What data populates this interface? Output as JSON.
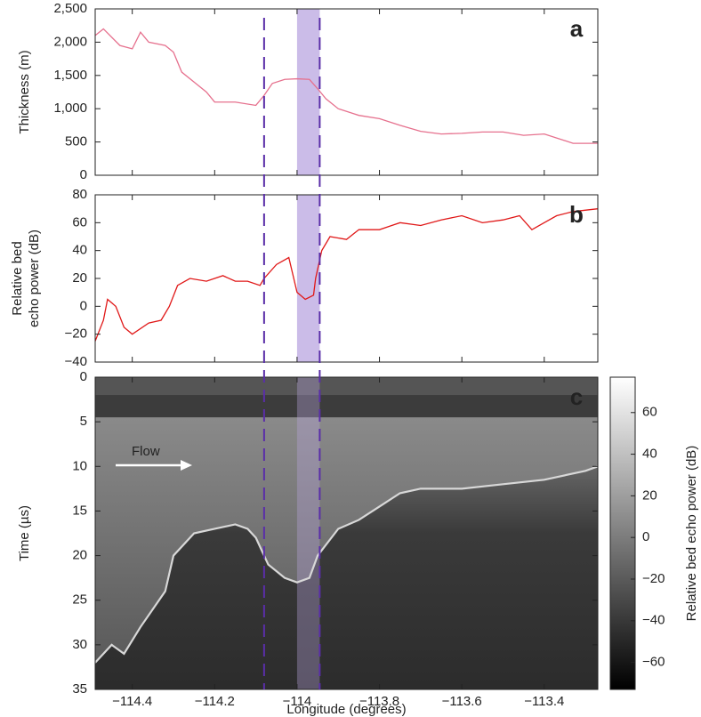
{
  "chart_data": [
    {
      "type": "line",
      "panel_label": "a",
      "y_label": "Thickness (m)",
      "x": [
        -114.49,
        -114.47,
        -114.43,
        -114.4,
        -114.38,
        -114.36,
        -114.32,
        -114.3,
        -114.28,
        -114.25,
        -114.22,
        -114.2,
        -114.15,
        -114.1,
        -114.08,
        -114.06,
        -114.03,
        -114.0,
        -113.97,
        -113.95,
        -113.93,
        -113.9,
        -113.85,
        -113.8,
        -113.75,
        -113.7,
        -113.65,
        -113.6,
        -113.55,
        -113.5,
        -113.45,
        -113.4,
        -113.37,
        -113.33,
        -113.27
      ],
      "series": [
        {
          "color": "#e6718e",
          "values": [
            2100,
            2200,
            1950,
            1900,
            2150,
            2000,
            1950,
            1850,
            1550,
            1400,
            1250,
            1100,
            1100,
            1050,
            1200,
            1380,
            1440,
            1450,
            1440,
            1300,
            1150,
            1000,
            900,
            850,
            750,
            660,
            620,
            630,
            650,
            650,
            600,
            620,
            560,
            480,
            480
          ]
        }
      ],
      "xlim": [
        -114.49,
        -113.27
      ],
      "xticks": [
        -114.4,
        -114.2,
        -114.0,
        -113.8,
        -113.6,
        -113.4
      ],
      "ylim": [
        0,
        2500
      ],
      "yticks": [
        0,
        500,
        {
          "value": 1000,
          "label": "1,000"
        },
        {
          "value": 1500,
          "label": "1,500"
        },
        {
          "value": 2000,
          "label": "2,000"
        },
        {
          "value": 2500,
          "label": "2,500"
        }
      ]
    },
    {
      "type": "line",
      "panel_label": "b",
      "y_label": [
        "Relative bed",
        "echo power (dB)"
      ],
      "x": [
        -114.49,
        -114.47,
        -114.46,
        -114.44,
        -114.42,
        -114.4,
        -114.36,
        -114.33,
        -114.31,
        -114.29,
        -114.26,
        -114.22,
        -114.18,
        -114.15,
        -114.12,
        -114.09,
        -114.08,
        -114.05,
        -114.02,
        -114.0,
        -113.98,
        -113.96,
        -113.955,
        -113.94,
        -113.92,
        -113.88,
        -113.85,
        -113.8,
        -113.75,
        -113.7,
        -113.65,
        -113.6,
        -113.55,
        -113.5,
        -113.46,
        -113.43,
        -113.4,
        -113.37,
        -113.33,
        -113.27
      ],
      "series": [
        {
          "color": "#e01818",
          "values": [
            -25,
            -10,
            5,
            0,
            -15,
            -20,
            -12,
            -10,
            0,
            15,
            20,
            18,
            22,
            18,
            18,
            15,
            20,
            30,
            35,
            10,
            5,
            8,
            20,
            40,
            50,
            48,
            55,
            55,
            60,
            58,
            62,
            65,
            60,
            62,
            65,
            55,
            60,
            65,
            68,
            70
          ]
        }
      ],
      "xlim": [
        -114.49,
        -113.27
      ],
      "xticks": [
        -114.4,
        -114.2,
        -114.0,
        -113.8,
        -113.6,
        -113.4
      ],
      "ylim": [
        -40,
        80
      ],
      "yticks": [
        {
          "value": -40,
          "label": "−40"
        },
        {
          "value": -20,
          "label": "−20"
        },
        0,
        20,
        40,
        60,
        80
      ]
    },
    {
      "type": "radargram",
      "panel_label": "c",
      "y_label": "Time (µs)",
      "x_label": "Longitude (degrees)",
      "annotation": "Flow",
      "x": [
        -114.49,
        -114.45,
        -114.42,
        -114.38,
        -114.35,
        -114.32,
        -114.3,
        -114.25,
        -114.2,
        -114.15,
        -114.12,
        -114.1,
        -114.07,
        -114.03,
        -114.0,
        -113.97,
        -113.95,
        -113.9,
        -113.85,
        -113.8,
        -113.75,
        -113.7,
        -113.6,
        -113.5,
        -113.4,
        -113.3,
        -113.27
      ],
      "series": [
        {
          "color": "#d8d8d8",
          "values": [
            32,
            30,
            31,
            28,
            26,
            24,
            20,
            17.5,
            17,
            16.5,
            17,
            18,
            21,
            22.5,
            23,
            22.5,
            20,
            17,
            16,
            14.5,
            13,
            12.5,
            12.5,
            12,
            11.5,
            10.5,
            10
          ]
        }
      ],
      "xlim": [
        -114.49,
        -113.27
      ],
      "xticks": [
        {
          "value": -114.4,
          "label": "−114.4"
        },
        {
          "value": -114.2,
          "label": "−114.2"
        },
        {
          "value": -114,
          "label": "−114"
        },
        {
          "value": -113.8,
          "label": "−113.8"
        },
        {
          "value": -113.6,
          "label": "−113.6"
        },
        {
          "value": -113.4,
          "label": "−113.4"
        }
      ],
      "ylim": [
        35,
        0
      ],
      "yticks": [
        0,
        5,
        10,
        15,
        20,
        25,
        30,
        35
      ],
      "colorbar": {
        "label": "Relative bed echo power (dB)",
        "clim": [
          -73,
          77
        ],
        "ticks": [
          {
            "value": -60,
            "label": "−60"
          },
          {
            "value": -40,
            "label": "−40"
          },
          {
            "value": -20,
            "label": "−20"
          },
          0,
          20,
          40,
          60
        ]
      }
    }
  ],
  "shared": {
    "highlight_span": [
      -114.0,
      -113.945
    ],
    "highlight_color": "#b9a5e0",
    "dashed_lines": [
      -114.08,
      -113.945
    ],
    "dashed_color": "#5a2ea8"
  }
}
